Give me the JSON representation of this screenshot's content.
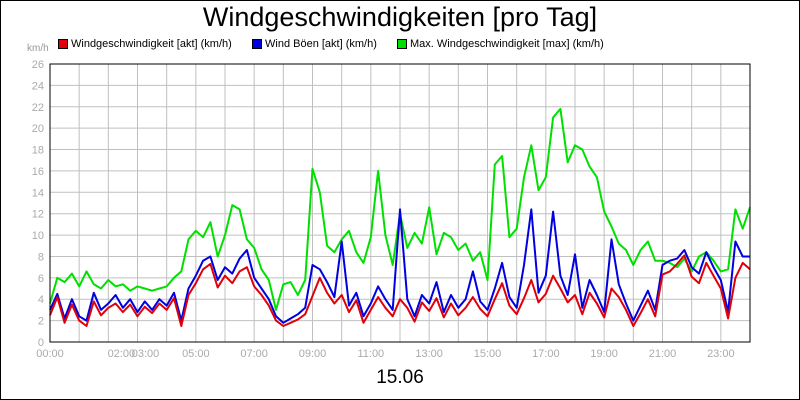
{
  "chart_data": {
    "type": "line",
    "title": "Windgeschwindigkeiten [pro Tag]",
    "xlabel": "15.06",
    "ylabel": "km/h",
    "ylim": [
      0,
      26
    ],
    "y_ticks": [
      "0",
      "2",
      "4",
      "6",
      "8",
      "10",
      "12",
      "14",
      "16",
      "18",
      "20",
      "22",
      "24",
      "26"
    ],
    "x_tick_labels": [
      {
        "h": 0,
        "label": "00:00"
      },
      {
        "h": 2,
        "label": "02:00"
      },
      {
        "h": 3,
        "label": "03:00"
      },
      {
        "h": 5,
        "label": "05:00"
      },
      {
        "h": 7,
        "label": "07:00"
      },
      {
        "h": 9,
        "label": "09:00"
      },
      {
        "h": 11,
        "label": "11:00"
      },
      {
        "h": 13,
        "label": "13:00"
      },
      {
        "h": 15,
        "label": "15:00"
      },
      {
        "h": 17,
        "label": "17:00"
      },
      {
        "h": 19,
        "label": "19:00"
      },
      {
        "h": 21,
        "label": "21:00"
      },
      {
        "h": 23,
        "label": "23:00"
      }
    ],
    "grid": true,
    "legend_position": "top",
    "series": [
      {
        "name": "Windgeschwindigkeit [akt] (km/h)",
        "color": "#e0000a",
        "x": [
          0,
          0.25,
          0.5,
          0.75,
          1,
          1.25,
          1.5,
          1.75,
          2,
          2.25,
          2.5,
          2.75,
          3,
          3.25,
          3.5,
          3.75,
          4,
          4.25,
          4.5,
          4.75,
          5,
          5.25,
          5.5,
          5.75,
          6,
          6.25,
          6.5,
          6.75,
          7,
          7.25,
          7.5,
          7.75,
          8,
          8.25,
          8.5,
          8.75,
          9,
          9.25,
          9.5,
          9.75,
          10,
          10.25,
          10.5,
          10.75,
          11,
          11.25,
          11.5,
          11.75,
          12,
          12.25,
          12.5,
          12.75,
          13,
          13.25,
          13.5,
          13.75,
          14,
          14.25,
          14.5,
          14.75,
          15,
          15.25,
          15.5,
          15.75,
          16,
          16.25,
          16.5,
          16.75,
          17,
          17.25,
          17.5,
          17.75,
          18,
          18.25,
          18.5,
          18.75,
          19,
          19.25,
          19.5,
          19.75,
          20,
          20.25,
          20.5,
          20.75,
          21,
          21.25,
          21.5,
          21.75,
          22,
          22.25,
          22.5,
          22.75,
          23,
          23.25,
          23.5,
          23.75,
          24
        ],
        "values": [
          2.5,
          4.2,
          1.8,
          3.5,
          2,
          1.5,
          3.8,
          2.5,
          3.2,
          3.6,
          2.8,
          3.5,
          2.4,
          3.3,
          2.7,
          3.6,
          3.0,
          4.1,
          1.5,
          4.4,
          5.5,
          6.8,
          7.3,
          5.1,
          6.2,
          5.5,
          6.6,
          7.0,
          5.2,
          4.4,
          3.4,
          2.0,
          1.5,
          1.8,
          2.1,
          2.6,
          4.3,
          6.0,
          4.6,
          3.6,
          4.4,
          2.8,
          3.9,
          1.8,
          3.0,
          4.2,
          3.2,
          2.4,
          4.0,
          3.2,
          1.9,
          3.7,
          2.9,
          4.1,
          2.3,
          3.6,
          2.5,
          3.2,
          4.2,
          3.1,
          2.4,
          4.0,
          5.5,
          3.4,
          2.6,
          4.1,
          5.8,
          3.7,
          4.5,
          6.2,
          5.0,
          3.7,
          4.4,
          2.6,
          4.6,
          3.6,
          2.3,
          5.0,
          4.2,
          3.0,
          1.5,
          2.7,
          4.0,
          2.4,
          6.3,
          6.6,
          7.3,
          8.1,
          6.1,
          5.5,
          7.4,
          6.2,
          5.0,
          2.2,
          6.0,
          7.4,
          6.8
        ]
      },
      {
        "name": "Wind Böen [akt] (km/h)",
        "color": "#0000e0",
        "x": [
          0,
          0.25,
          0.5,
          0.75,
          1,
          1.25,
          1.5,
          1.75,
          2,
          2.25,
          2.5,
          2.75,
          3,
          3.25,
          3.5,
          3.75,
          4,
          4.25,
          4.5,
          4.75,
          5,
          5.25,
          5.5,
          5.75,
          6,
          6.25,
          6.5,
          6.75,
          7,
          7.25,
          7.5,
          7.75,
          8,
          8.25,
          8.5,
          8.75,
          9,
          9.25,
          9.5,
          9.75,
          10,
          10.25,
          10.5,
          10.75,
          11,
          11.25,
          11.5,
          11.75,
          12,
          12.25,
          12.5,
          12.75,
          13,
          13.25,
          13.5,
          13.75,
          14,
          14.25,
          14.5,
          14.75,
          15,
          15.25,
          15.5,
          15.75,
          16,
          16.25,
          16.5,
          16.75,
          17,
          17.25,
          17.5,
          17.75,
          18,
          18.25,
          18.5,
          18.75,
          19,
          19.25,
          19.5,
          19.75,
          20,
          20.25,
          20.5,
          20.75,
          21,
          21.25,
          21.5,
          21.75,
          22,
          22.25,
          22.5,
          22.75,
          23,
          23.25,
          23.5,
          23.75,
          24
        ],
        "values": [
          3.0,
          4.5,
          2.2,
          4.0,
          2.4,
          2.0,
          4.6,
          3.0,
          3.6,
          4.4,
          3.2,
          4.0,
          2.8,
          3.8,
          3.0,
          4.0,
          3.4,
          4.6,
          2.0,
          5.0,
          6.2,
          7.6,
          8.0,
          5.8,
          7.0,
          6.4,
          7.8,
          8.6,
          6.0,
          5.0,
          4.0,
          2.4,
          1.8,
          2.2,
          2.6,
          3.2,
          7.2,
          6.8,
          5.6,
          4.2,
          9.4,
          3.4,
          4.6,
          2.4,
          3.6,
          5.2,
          4.0,
          3.0,
          12.4,
          4.0,
          2.4,
          4.4,
          3.6,
          5.6,
          2.8,
          4.4,
          3.2,
          4.0,
          6.6,
          3.8,
          3.0,
          5.0,
          7.4,
          4.2,
          3.2,
          7.2,
          12.4,
          4.6,
          6.2,
          12.2,
          6.2,
          4.4,
          8.2,
          3.2,
          5.8,
          4.4,
          2.8,
          9.6,
          5.4,
          3.6,
          2.0,
          3.4,
          4.8,
          3.0,
          7.2,
          7.6,
          7.8,
          8.6,
          7.0,
          6.4,
          8.4,
          7.0,
          5.8,
          2.8,
          9.4,
          8.0,
          8.0
        ]
      },
      {
        "name": "Max. Windgeschwindigkeit [max] (km/h)",
        "color": "#00e000",
        "x": [
          0,
          0.25,
          0.5,
          0.75,
          1,
          1.25,
          1.5,
          1.75,
          2,
          2.25,
          2.5,
          2.75,
          3,
          3.25,
          3.5,
          3.75,
          4,
          4.25,
          4.5,
          4.75,
          5,
          5.25,
          5.5,
          5.75,
          6,
          6.25,
          6.5,
          6.75,
          7,
          7.25,
          7.5,
          7.75,
          8,
          8.25,
          8.5,
          8.75,
          9,
          9.25,
          9.5,
          9.75,
          10,
          10.25,
          10.5,
          10.75,
          11,
          11.25,
          11.5,
          11.75,
          12,
          12.25,
          12.5,
          12.75,
          13,
          13.25,
          13.5,
          13.75,
          14,
          14.25,
          14.5,
          14.75,
          15,
          15.25,
          15.5,
          15.75,
          16,
          16.25,
          16.5,
          16.75,
          17,
          17.25,
          17.5,
          17.75,
          18,
          18.25,
          18.5,
          18.75,
          19,
          19.25,
          19.5,
          19.75,
          20,
          20.25,
          20.5,
          20.75,
          21,
          21.25,
          21.5,
          21.75,
          22,
          22.25,
          22.5,
          22.75,
          23,
          23.25,
          23.5,
          23.75,
          24
        ],
        "values": [
          3.6,
          6.0,
          5.6,
          6.4,
          5.2,
          6.6,
          5.4,
          5.0,
          5.8,
          5.2,
          5.4,
          4.8,
          5.2,
          5.0,
          4.8,
          5.0,
          5.2,
          6.0,
          6.6,
          9.6,
          10.4,
          9.8,
          11.2,
          8.0,
          10.0,
          12.8,
          12.4,
          9.6,
          8.8,
          6.8,
          5.8,
          3.0,
          5.4,
          5.6,
          4.4,
          5.8,
          16.2,
          14.0,
          9.0,
          8.4,
          9.6,
          10.4,
          8.4,
          7.4,
          9.8,
          16.0,
          10.0,
          7.2,
          12.0,
          8.8,
          10.2,
          9.2,
          12.6,
          8.2,
          10.2,
          9.8,
          8.6,
          9.2,
          7.6,
          8.4,
          5.8,
          16.6,
          17.4,
          9.8,
          10.6,
          15.4,
          18.4,
          14.2,
          15.4,
          21.0,
          21.8,
          16.8,
          18.4,
          18.0,
          16.4,
          15.4,
          12.2,
          10.8,
          9.2,
          8.6,
          7.2,
          8.6,
          9.4,
          7.6,
          7.6,
          7.4,
          7.0,
          7.8,
          6.6,
          8.0,
          8.4,
          7.6,
          6.6,
          6.8,
          12.4,
          10.6,
          12.6
        ]
      }
    ]
  }
}
